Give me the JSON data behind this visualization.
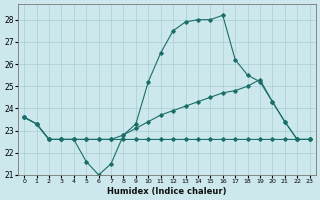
{
  "xlabel": "Humidex (Indice chaleur)",
  "background_color": "#cce8ec",
  "grid_color": "#aacdd4",
  "line_color": "#1a6e6a",
  "xlim": [
    -0.5,
    23.5
  ],
  "ylim": [
    21,
    28.7
  ],
  "xticks": [
    0,
    1,
    2,
    3,
    4,
    5,
    6,
    7,
    8,
    9,
    10,
    11,
    12,
    13,
    14,
    15,
    16,
    17,
    18,
    19,
    20,
    21,
    22,
    23
  ],
  "yticks": [
    21,
    22,
    23,
    24,
    25,
    26,
    27,
    28
  ],
  "series1_x": [
    0,
    1,
    2,
    3,
    4,
    5,
    6,
    7,
    8,
    9,
    10,
    11,
    12,
    13,
    14,
    15,
    16,
    17,
    18,
    19,
    20,
    21,
    22,
    23
  ],
  "series1_y": [
    23.6,
    23.3,
    22.6,
    22.6,
    22.6,
    22.6,
    22.6,
    22.6,
    22.6,
    22.6,
    22.6,
    22.6,
    22.6,
    22.6,
    22.6,
    22.6,
    22.6,
    22.6,
    22.6,
    22.6,
    22.6,
    22.6,
    22.6,
    22.6
  ],
  "series2_x": [
    0,
    1,
    2,
    3,
    4,
    5,
    6,
    7,
    8,
    9,
    10,
    11,
    12,
    13,
    14,
    15,
    16,
    17,
    18,
    19,
    20,
    21,
    22,
    23
  ],
  "series2_y": [
    23.6,
    23.3,
    22.6,
    22.6,
    22.6,
    22.6,
    22.6,
    22.6,
    22.8,
    23.1,
    23.4,
    23.7,
    23.9,
    24.1,
    24.3,
    24.5,
    24.7,
    24.8,
    25.0,
    25.3,
    24.3,
    23.4,
    22.6,
    22.6
  ],
  "series3_x": [
    0,
    1,
    2,
    3,
    4,
    5,
    6,
    7,
    8,
    9,
    10,
    11,
    12,
    13,
    14,
    15,
    16,
    17,
    18,
    19,
    20,
    21,
    22,
    23
  ],
  "series3_y": [
    23.6,
    23.3,
    22.6,
    22.6,
    22.6,
    21.6,
    21.0,
    21.5,
    22.8,
    23.3,
    25.2,
    26.5,
    27.5,
    27.9,
    28.0,
    28.0,
    28.2,
    26.2,
    25.5,
    25.2,
    24.3,
    23.4,
    22.6,
    22.6
  ]
}
